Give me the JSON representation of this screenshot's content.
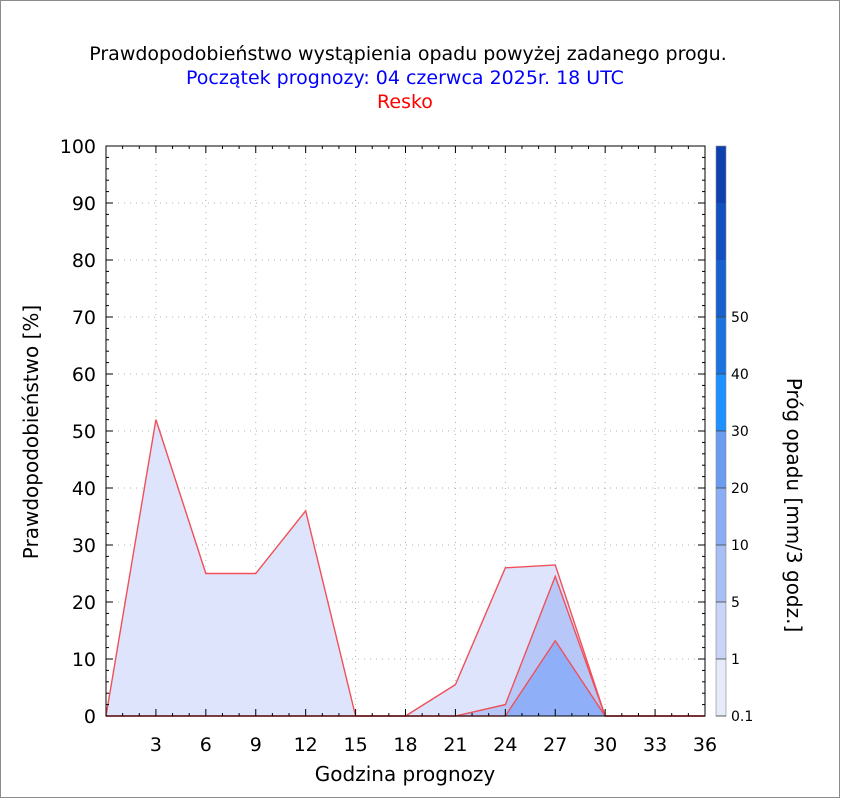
{
  "title": "Prawdopodobieństwo wystąpienia opadu powyżej zadanego progu.",
  "subtitle": "Początek prognozy: 04 czerwca 2025r. 18 UTC",
  "station": "Resko",
  "chart_data": {
    "type": "area",
    "xlabel": "Godzina prognozy",
    "ylabel": "Prawdopodobieństwo [%]",
    "colorbar_label": "Próg opadu [mm/3 godz.]",
    "xlim": [
      0,
      36
    ],
    "ylim": [
      0,
      100
    ],
    "xticks": [
      3,
      6,
      9,
      12,
      15,
      18,
      21,
      24,
      27,
      30,
      33,
      36
    ],
    "yticks": [
      0,
      10,
      20,
      30,
      40,
      50,
      60,
      70,
      80,
      90,
      100
    ],
    "grid": true,
    "x": [
      0,
      3,
      6,
      9,
      12,
      15,
      18,
      21,
      24,
      27,
      30,
      33,
      36
    ],
    "series": [
      {
        "name": "0.1",
        "color": "#dde4fb",
        "values": [
          0,
          52,
          25,
          25,
          36,
          0,
          0,
          5.5,
          26,
          26.5,
          0,
          0,
          0
        ]
      },
      {
        "name": "1",
        "color": "#b6c7f8",
        "values": [
          0,
          0,
          0,
          0,
          0,
          0,
          0,
          0,
          2,
          24.5,
          0,
          0,
          0
        ]
      },
      {
        "name": "5",
        "color": "#8fb0f8",
        "values": [
          0,
          0,
          0,
          0,
          0,
          0,
          0,
          0,
          0,
          13.2,
          0,
          0,
          0
        ]
      }
    ],
    "colorbar": {
      "tick_labels": [
        "0.1",
        "1",
        "5",
        "10",
        "20",
        "30",
        "40",
        "50"
      ],
      "colors": [
        "#e6ebfb",
        "#c8d4f8",
        "#a8bff6",
        "#8badf4",
        "#6b9cf2",
        "#1e90ff",
        "#1a74e0",
        "#1661cf",
        "#1250c0",
        "#0e40b0"
      ]
    }
  }
}
